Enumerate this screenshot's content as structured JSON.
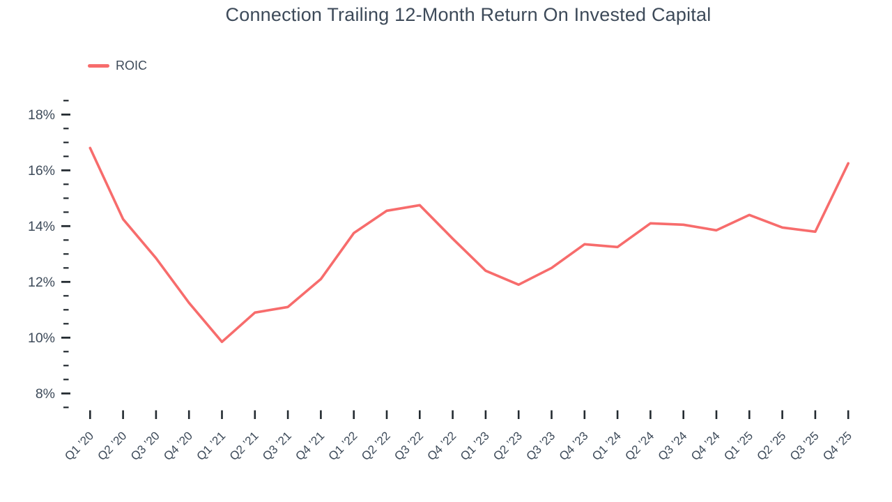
{
  "chart_data": {
    "type": "line",
    "title": "Connection Trailing 12-Month Return On Invested Capital",
    "legend_position": "top-left",
    "grid": false,
    "xlabel": "",
    "ylabel": "",
    "categories": [
      "Q1 ’20",
      "Q2 ’20",
      "Q3 ’20",
      "Q4 ’20",
      "Q1 ’21",
      "Q2 ’21",
      "Q3 ’21",
      "Q4 ’21",
      "Q1 ’22",
      "Q2 ’22",
      "Q3 ’22",
      "Q4 ’22",
      "Q1 ’23",
      "Q2 ’23",
      "Q3 ’23",
      "Q4 ’23",
      "Q1 ’24",
      "Q2 ’24",
      "Q3 ’24",
      "Q4 ’24",
      "Q1 ’25",
      "Q2 ’25",
      "Q3 ’25",
      "Q4 ’25"
    ],
    "series": [
      {
        "name": "ROIC",
        "color": "#f76c6c",
        "values": [
          16.8,
          14.25,
          12.85,
          11.25,
          9.85,
          10.9,
          11.1,
          12.1,
          13.75,
          14.55,
          14.75,
          13.55,
          12.4,
          11.9,
          12.5,
          13.35,
          13.25,
          14.1,
          14.05,
          13.85,
          14.4,
          13.95,
          13.8,
          16.25
        ]
      }
    ],
    "y_axis": {
      "min": 7.5,
      "max": 18.5,
      "minor_step": 0.5,
      "major_ticks": [
        18,
        16,
        14,
        12,
        10,
        8
      ],
      "labels": [
        "18%",
        "16%",
        "14%",
        "12%",
        "10%",
        "8%"
      ],
      "unit": "percent"
    }
  },
  "colors": {
    "series_line": "#f76c6c",
    "title_text": "#3d4a59",
    "axis_label_text": "#3d4a59",
    "tick_mark": "#232a30",
    "background": "#ffffff"
  }
}
